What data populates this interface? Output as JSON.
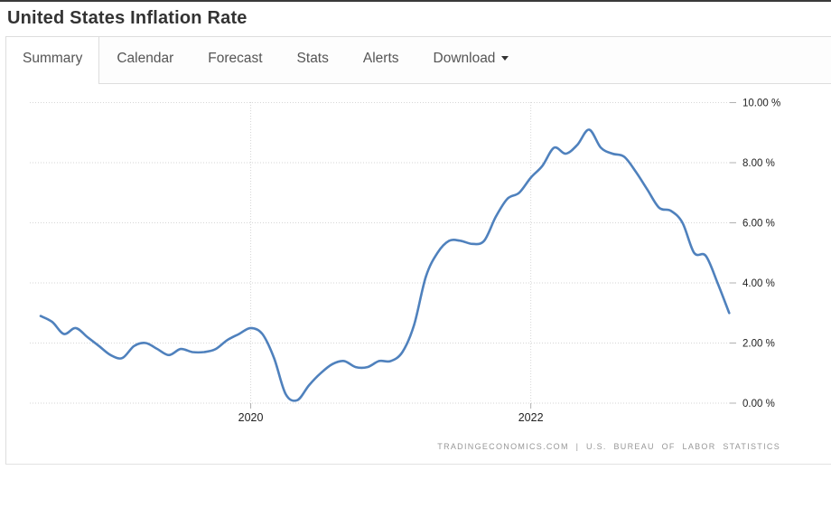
{
  "page": {
    "title": "United States Inflation Rate"
  },
  "tabs": {
    "items": [
      {
        "label": "Summary",
        "active": true
      },
      {
        "label": "Calendar",
        "active": false
      },
      {
        "label": "Forecast",
        "active": false
      },
      {
        "label": "Stats",
        "active": false
      },
      {
        "label": "Alerts",
        "active": false
      },
      {
        "label": "Download",
        "active": false,
        "has_caret": true
      }
    ]
  },
  "chart_data": {
    "type": "line",
    "title": "United States Inflation Rate",
    "unit": "%",
    "grid": "dotted",
    "line_color": "#4f81bd",
    "ylim": [
      0,
      10
    ],
    "y_ticks": [
      {
        "value": 0,
        "label": "0.00 %"
      },
      {
        "value": 2,
        "label": "2.00 %"
      },
      {
        "value": 4,
        "label": "4.00 %"
      },
      {
        "value": 6,
        "label": "6.00 %"
      },
      {
        "value": 8,
        "label": "8.00 %"
      },
      {
        "value": 10,
        "label": "10.00 %"
      }
    ],
    "x_ticks": [
      {
        "x": "2020-01",
        "label": "2020"
      },
      {
        "x": "2022-01",
        "label": "2022"
      }
    ],
    "x": [
      "2018-07",
      "2018-08",
      "2018-09",
      "2018-10",
      "2018-11",
      "2018-12",
      "2019-01",
      "2019-02",
      "2019-03",
      "2019-04",
      "2019-05",
      "2019-06",
      "2019-07",
      "2019-08",
      "2019-09",
      "2019-10",
      "2019-11",
      "2019-12",
      "2020-01",
      "2020-02",
      "2020-03",
      "2020-04",
      "2020-05",
      "2020-06",
      "2020-07",
      "2020-08",
      "2020-09",
      "2020-10",
      "2020-11",
      "2020-12",
      "2021-01",
      "2021-02",
      "2021-03",
      "2021-04",
      "2021-05",
      "2021-06",
      "2021-07",
      "2021-08",
      "2021-09",
      "2021-10",
      "2021-11",
      "2021-12",
      "2022-01",
      "2022-02",
      "2022-03",
      "2022-04",
      "2022-05",
      "2022-06",
      "2022-07",
      "2022-08",
      "2022-09",
      "2022-10",
      "2022-11",
      "2022-12",
      "2023-01",
      "2023-02",
      "2023-03",
      "2023-04",
      "2023-05",
      "2023-06"
    ],
    "series": [
      {
        "name": "Inflation Rate",
        "color": "#4f81bd",
        "values": [
          2.9,
          2.7,
          2.3,
          2.5,
          2.2,
          1.9,
          1.6,
          1.5,
          1.9,
          2.0,
          1.8,
          1.6,
          1.8,
          1.7,
          1.7,
          1.8,
          2.1,
          2.3,
          2.5,
          2.3,
          1.5,
          0.3,
          0.1,
          0.6,
          1.0,
          1.3,
          1.4,
          1.2,
          1.2,
          1.4,
          1.4,
          1.7,
          2.6,
          4.2,
          5.0,
          5.4,
          5.4,
          5.3,
          5.4,
          6.2,
          6.8,
          7.0,
          7.5,
          7.9,
          8.5,
          8.3,
          8.6,
          9.1,
          8.5,
          8.3,
          8.2,
          7.7,
          7.1,
          6.5,
          6.4,
          6.0,
          5.0,
          4.9,
          4.0,
          3.0
        ]
      }
    ],
    "source": "TRADINGECONOMICS.COM | U.S. BUREAU OF LABOR STATISTICS"
  }
}
